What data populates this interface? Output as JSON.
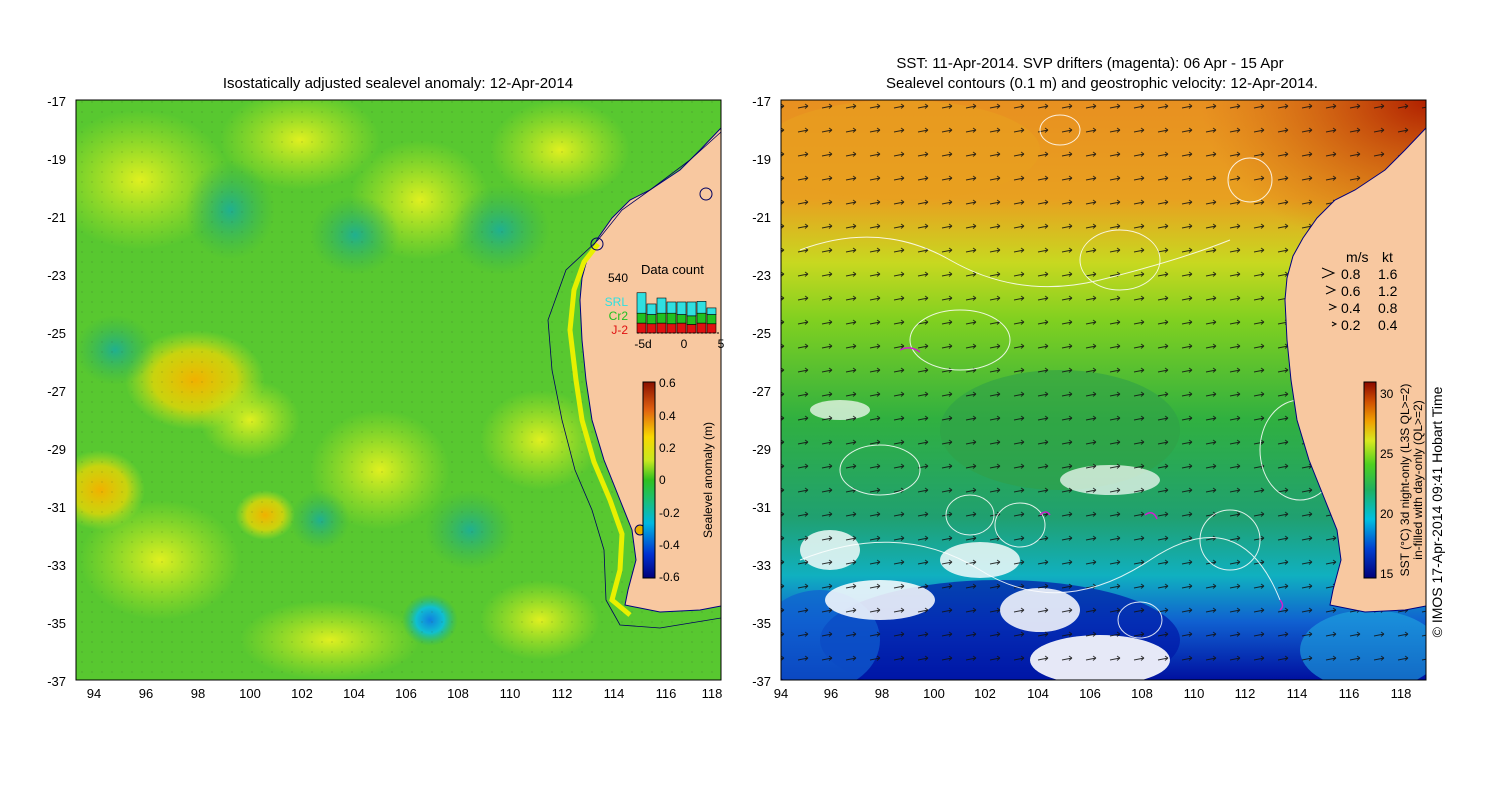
{
  "left_panel": {
    "title": "Isostatically adjusted sealevel anomaly: 12-Apr-2014",
    "lat_ticks": [
      "-17",
      "-19",
      "-21",
      "-23",
      "-25",
      "-27",
      "-29",
      "-31",
      "-33",
      "-35",
      "-37"
    ],
    "lon_ticks": [
      "94",
      "96",
      "98",
      "100",
      "102",
      "104",
      "106",
      "108",
      "110",
      "112",
      "114",
      "116",
      "118"
    ],
    "colorbar": {
      "label": "Sealevel anomaly (m)",
      "ticks": [
        "0.6",
        "0.4",
        "0.2",
        "0",
        "-0.2",
        "-0.4",
        "-0.6"
      ]
    },
    "inset": {
      "title": "Data count",
      "max_label": "540",
      "legend": [
        {
          "label": "SRL",
          "color": "#30e0e0"
        },
        {
          "label": "Cr2",
          "color": "#20c020"
        },
        {
          "label": "J-2",
          "color": "#e01010"
        }
      ],
      "x_ticks": [
        "-5d",
        "0",
        "5"
      ],
      "bars": [
        {
          "j2": 0.3,
          "cr2": 0.3,
          "srl": 0.62
        },
        {
          "j2": 0.28,
          "cr2": 0.28,
          "srl": 0.32
        },
        {
          "j2": 0.3,
          "cr2": 0.3,
          "srl": 0.46
        },
        {
          "j2": 0.28,
          "cr2": 0.32,
          "srl": 0.34
        },
        {
          "j2": 0.3,
          "cr2": 0.26,
          "srl": 0.38
        },
        {
          "j2": 0.26,
          "cr2": 0.26,
          "srl": 0.42
        },
        {
          "j2": 0.3,
          "cr2": 0.3,
          "srl": 0.36
        },
        {
          "j2": 0.28,
          "cr2": 0.28,
          "srl": 0.2
        }
      ]
    }
  },
  "right_panel": {
    "title_line1": "SST: 11-Apr-2014. SVP drifters (magenta): 06 Apr - 15 Apr",
    "title_line2": "Sealevel contours (0.1 m) and geostrophic velocity: 12-Apr-2014.",
    "lat_ticks": [
      "-17",
      "-19",
      "-21",
      "-23",
      "-25",
      "-27",
      "-29",
      "-31",
      "-33",
      "-35",
      "-37"
    ],
    "lon_ticks": [
      "94",
      "96",
      "98",
      "100",
      "102",
      "104",
      "106",
      "108",
      "110",
      "112",
      "114",
      "116",
      "118"
    ],
    "velocity_legend": {
      "header_ms": "m/s",
      "header_kt": "kt",
      "rows": [
        {
          "ms": "0.8",
          "kt": "1.6"
        },
        {
          "ms": "0.6",
          "kt": "1.2"
        },
        {
          "ms": "0.4",
          "kt": "0.8"
        },
        {
          "ms": "0.2",
          "kt": "0.4"
        }
      ]
    },
    "colorbar": {
      "ticks": [
        "30",
        "25",
        "20",
        "15"
      ],
      "label_line1": "SST (°C) 3d night-only (L3S QL>=2)",
      "label_line2": "in-filled with day-only (QL>=2)"
    }
  },
  "credit": "© IMOS 17-Apr-2014 09:41 Hobart Time",
  "colors": {
    "land": "#f8c8a0",
    "coast": "#000080",
    "drifter": "#d020d0"
  }
}
